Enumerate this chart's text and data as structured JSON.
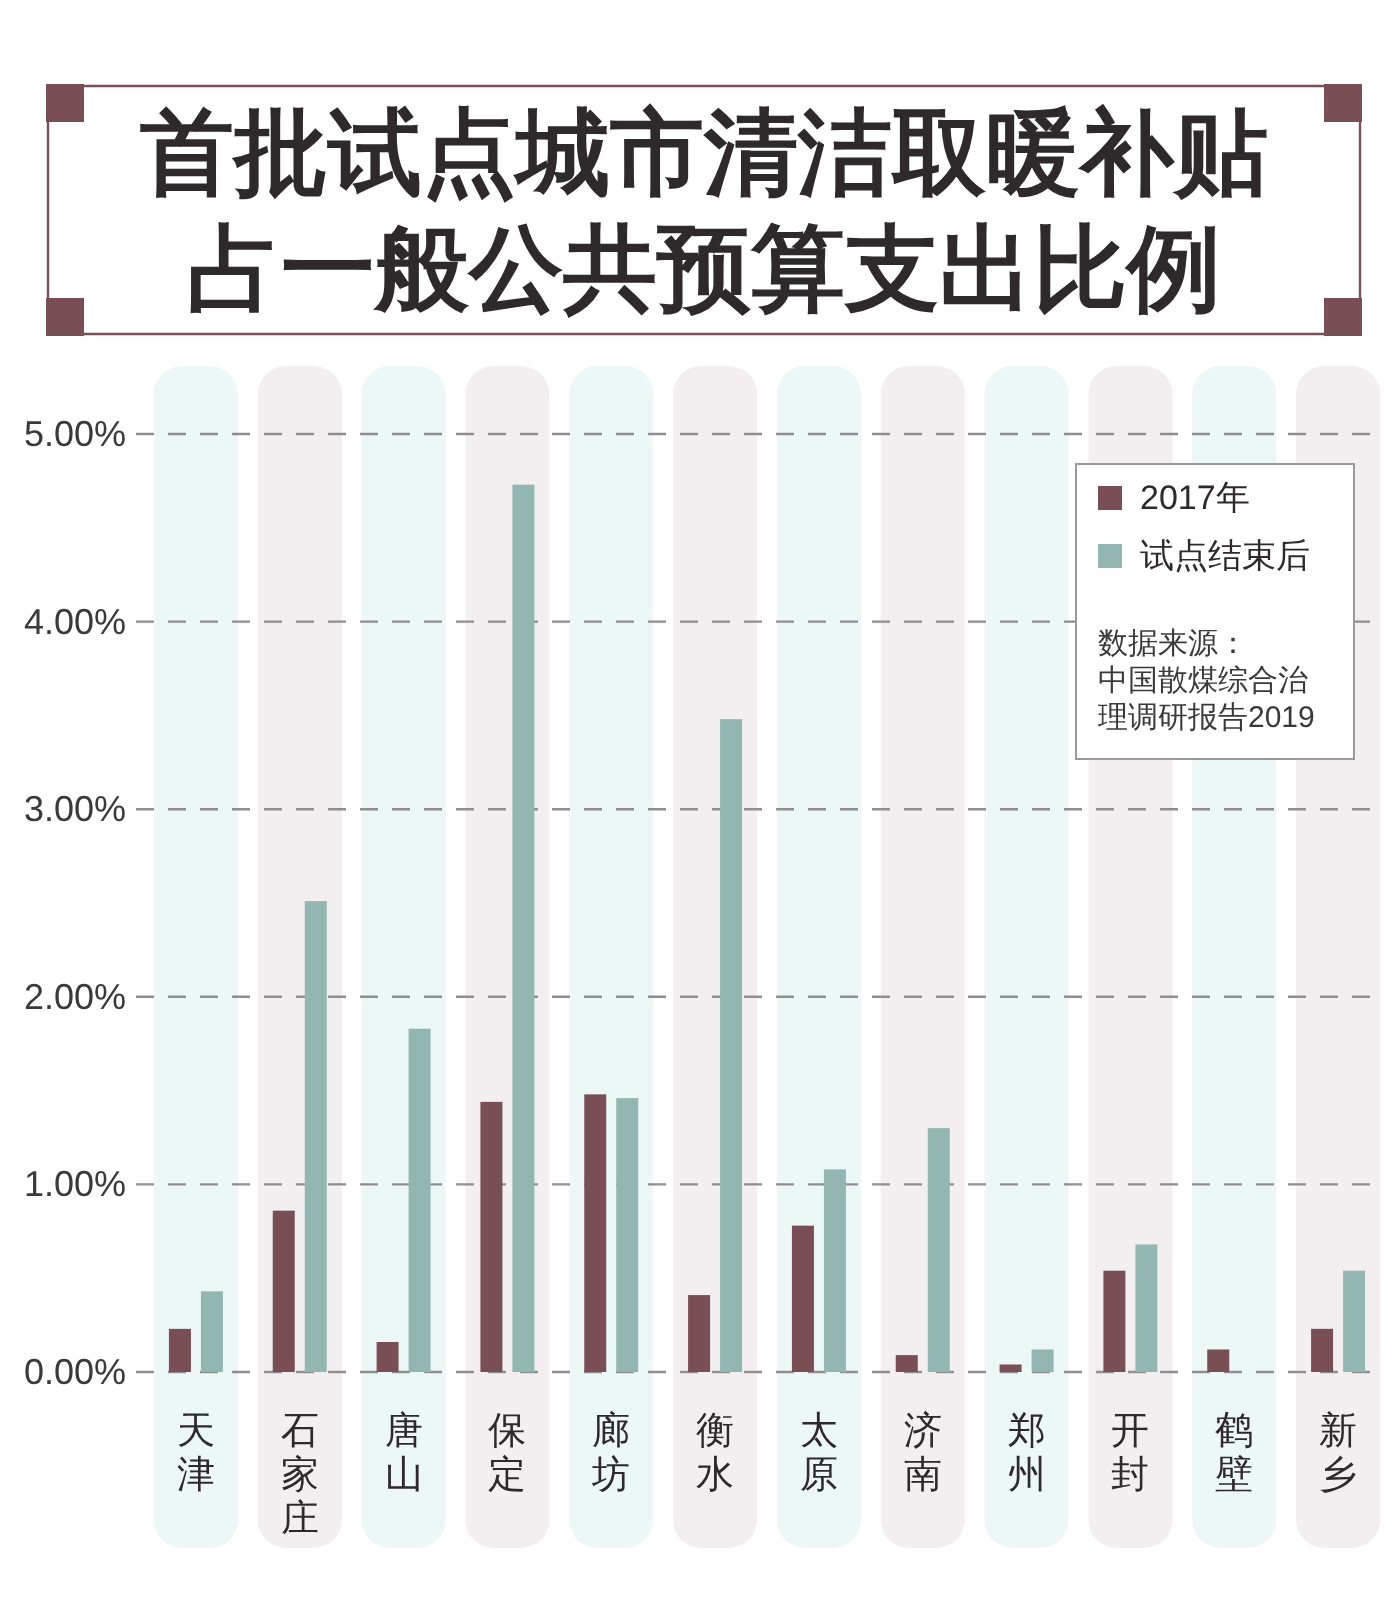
{
  "chart_data": {
    "type": "bar",
    "title": "首批试点城市清洁取暖补贴占一般公共预算支出比例",
    "categories": [
      "天津",
      "石家庄",
      "唐山",
      "保定",
      "廊坊",
      "衡水",
      "太原",
      "济南",
      "郑州",
      "开封",
      "鹤壁",
      "新乡"
    ],
    "series": [
      {
        "name": "2017年",
        "color": "#7a4e55",
        "values": [
          0.23,
          0.86,
          0.16,
          1.44,
          1.48,
          0.41,
          0.78,
          0.09,
          0.04,
          0.54,
          0.12,
          0.23
        ]
      },
      {
        "name": "试点结束后",
        "color": "#92b7b0",
        "values": [
          0.43,
          2.51,
          1.83,
          4.73,
          1.46,
          3.48,
          1.08,
          1.3,
          0.12,
          0.68,
          null,
          0.54
        ]
      }
    ],
    "ylim": [
      0,
      5
    ],
    "yticks": [
      {
        "value": 0,
        "label": "0.00%"
      },
      {
        "value": 1,
        "label": "1.00%"
      },
      {
        "value": 2,
        "label": "2.00%"
      },
      {
        "value": 3,
        "label": "3.00%"
      },
      {
        "value": 4,
        "label": "4.00%"
      },
      {
        "value": 5,
        "label": "5.00%"
      }
    ],
    "bands": [
      {
        "axis": "x",
        "from": "天津",
        "to": "天津",
        "color": "#ecf8f6"
      },
      {
        "axis": "x",
        "from": "石家庄",
        "to": "石家庄",
        "color": "#f3eff1"
      },
      {
        "axis": "x",
        "from": "唐山",
        "to": "唐山",
        "color": "#ecf8f6"
      },
      {
        "axis": "x",
        "from": "保定",
        "to": "保定",
        "color": "#f3eff1"
      },
      {
        "axis": "x",
        "from": "廊坊",
        "to": "廊坊",
        "color": "#ecf8f6"
      },
      {
        "axis": "x",
        "from": "衡水",
        "to": "衡水",
        "color": "#f3eff1"
      },
      {
        "axis": "x",
        "from": "太原",
        "to": "太原",
        "color": "#ecf8f6"
      },
      {
        "axis": "x",
        "from": "济南",
        "to": "济南",
        "color": "#f3eff1"
      },
      {
        "axis": "x",
        "from": "郑州",
        "to": "郑州",
        "color": "#ecf8f6"
      },
      {
        "axis": "x",
        "from": "开封",
        "to": "开封",
        "color": "#f3eff1"
      },
      {
        "axis": "x",
        "from": "鹤壁",
        "to": "鹤壁",
        "color": "#ecf8f6"
      },
      {
        "axis": "x",
        "from": "新乡",
        "to": "新乡",
        "color": "#f3eff1"
      }
    ],
    "grid": "y",
    "legend": "top right",
    "annotations": [
      "数据来源：中国散煤综合治理调研报告2019"
    ]
  }
}
